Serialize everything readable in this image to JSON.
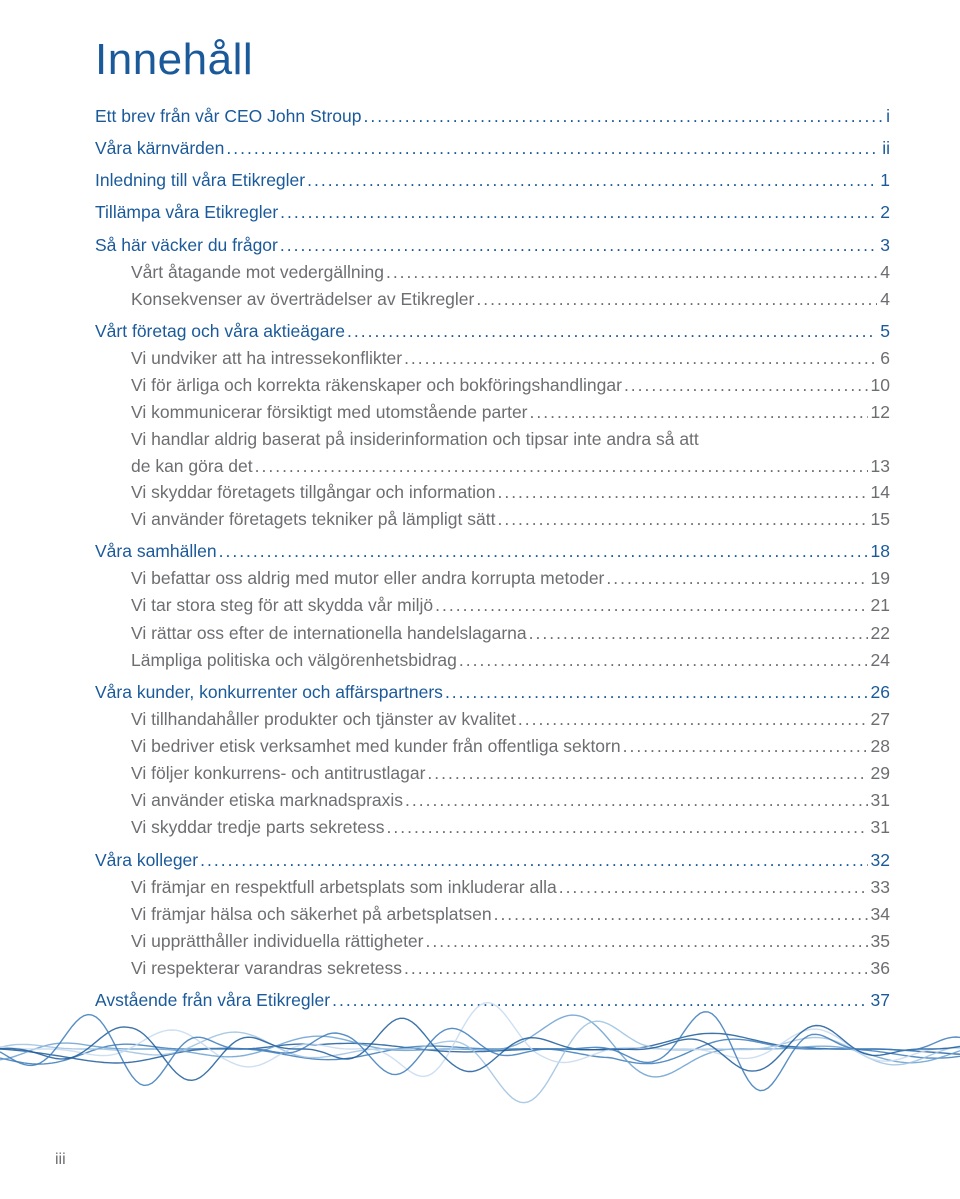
{
  "title": "Innehåll",
  "footer_page": "iii",
  "colors": {
    "heading": "#1b5a9a",
    "body": "#6d6e71",
    "background": "#ffffff"
  },
  "toc": [
    {
      "type": "section",
      "label": "Ett brev från vår CEO John Stroup",
      "page": "i"
    },
    {
      "type": "section",
      "label": "Våra kärnvärden",
      "page": "ii"
    },
    {
      "type": "section",
      "label": "Inledning till våra Etikregler",
      "page": "1"
    },
    {
      "type": "section",
      "label": "Tillämpa våra Etikregler",
      "page": "2"
    },
    {
      "type": "section",
      "label": "Så här väcker du frågor",
      "page": "3"
    },
    {
      "type": "sub",
      "label": "Vårt åtagande mot vedergällning",
      "page": "4"
    },
    {
      "type": "sub",
      "label": "Konsekvenser av överträdelser av Etikregler",
      "page": "4"
    },
    {
      "type": "section",
      "label": "Vårt företag och våra aktieägare",
      "page": "5"
    },
    {
      "type": "sub",
      "label": "Vi undviker att ha intressekonflikter",
      "page": "6"
    },
    {
      "type": "sub",
      "label": "Vi för ärliga och korrekta räkenskaper och bokföringshandlingar",
      "page": "10"
    },
    {
      "type": "sub",
      "label": "Vi kommunicerar försiktigt med utomstående parter",
      "page": "12"
    },
    {
      "type": "sub-multi",
      "label1": "Vi handlar aldrig baserat på insiderinformation och tipsar inte andra så att",
      "label2": "de kan göra det",
      "page": "13"
    },
    {
      "type": "sub",
      "label": "Vi skyddar företagets tillgångar och information",
      "page": "14"
    },
    {
      "type": "sub",
      "label": "Vi använder företagets tekniker på lämpligt sätt",
      "page": "15"
    },
    {
      "type": "section",
      "label": "Våra samhällen",
      "page": "18"
    },
    {
      "type": "sub",
      "label": "Vi befattar oss aldrig med mutor eller andra korrupta metoder",
      "page": "19"
    },
    {
      "type": "sub",
      "label": "Vi tar stora steg för att skydda vår miljö",
      "page": "21"
    },
    {
      "type": "sub",
      "label": "Vi rättar oss efter de internationella handelslagarna",
      "page": "22"
    },
    {
      "type": "sub",
      "label": "Lämpliga politiska och välgörenhetsbidrag",
      "page": "24"
    },
    {
      "type": "section",
      "label": "Våra kunder, konkurrenter och affärspartners",
      "page": "26"
    },
    {
      "type": "sub",
      "label": "Vi tillhandahåller produkter och tjänster av kvalitet",
      "page": "27"
    },
    {
      "type": "sub",
      "label": "Vi bedriver etisk verksamhet med kunder från offentliga sektorn",
      "page": "28"
    },
    {
      "type": "sub",
      "label": "Vi följer konkurrens- och antitrustlagar",
      "page": "29"
    },
    {
      "type": "sub",
      "label": "Vi använder etiska marknadspraxis",
      "page": "31"
    },
    {
      "type": "sub",
      "label": "Vi skyddar tredje parts sekretess",
      "page": "31"
    },
    {
      "type": "section",
      "label": "Våra kolleger",
      "page": "32"
    },
    {
      "type": "sub",
      "label": "Vi främjar en respektfull arbetsplats som inkluderar alla",
      "page": "33"
    },
    {
      "type": "sub",
      "label": "Vi främjar hälsa och säkerhet på arbetsplatsen",
      "page": "34"
    },
    {
      "type": "sub",
      "label": "Vi upprätthåller individuella rättigheter",
      "page": "35"
    },
    {
      "type": "sub",
      "label": "Vi respekterar varandras sekretess",
      "page": "36"
    },
    {
      "type": "section",
      "label": "Avstående från våra Etikregler",
      "page": "37"
    }
  ],
  "wave": {
    "colors": [
      "#1b5a9a",
      "#3b7ab8",
      "#6aa0d0",
      "#9cc1e0",
      "#c5d9ee"
    ],
    "stroke_width": 1.4,
    "opacity": 0.85
  }
}
